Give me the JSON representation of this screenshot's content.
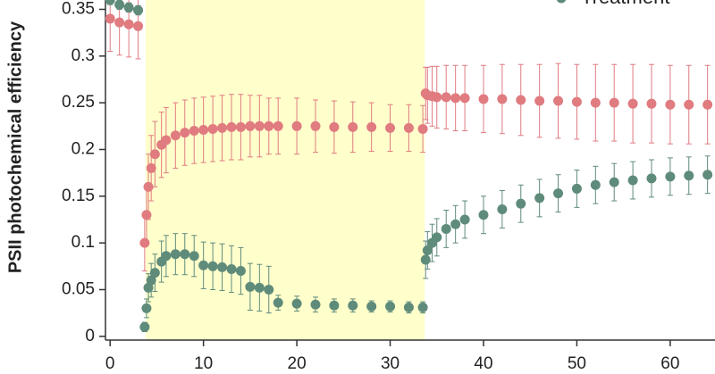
{
  "chart_data": {
    "type": "line",
    "y_label": "PSII photochemical efficiency",
    "x": [
      0,
      1,
      2,
      3,
      3.7,
      3.9,
      4.1,
      4.4,
      4.8,
      5.5,
      6,
      7,
      8,
      9,
      10,
      11,
      12,
      13,
      14,
      15,
      16,
      17,
      18,
      20,
      22,
      24,
      26,
      28,
      30,
      32,
      33.5,
      33.8,
      34,
      34.5,
      35,
      36,
      37,
      38,
      40,
      42,
      44,
      46,
      48,
      50,
      52,
      54,
      56,
      58,
      60,
      62,
      64
    ],
    "series": [
      {
        "color": "#e07b80",
        "values": [
          0.34,
          0.336,
          0.334,
          0.332,
          0.1,
          0.13,
          0.16,
          0.18,
          0.195,
          0.205,
          0.21,
          0.215,
          0.218,
          0.22,
          0.221,
          0.222,
          0.223,
          0.224,
          0.224,
          0.225,
          0.225,
          0.225,
          0.225,
          0.225,
          0.225,
          0.224,
          0.224,
          0.224,
          0.223,
          0.223,
          0.222,
          0.26,
          0.258,
          0.257,
          0.256,
          0.256,
          0.255,
          0.255,
          0.254,
          0.254,
          0.253,
          0.252,
          0.252,
          0.251,
          0.25,
          0.25,
          0.249,
          0.249,
          0.248,
          0.248,
          0.248
        ],
        "errors": [
          0.035,
          0.035,
          0.035,
          0.035,
          0.03,
          0.03,
          0.035,
          0.035,
          0.035,
          0.035,
          0.035,
          0.035,
          0.035,
          0.035,
          0.035,
          0.035,
          0.035,
          0.035,
          0.035,
          0.033,
          0.033,
          0.03,
          0.03,
          0.03,
          0.028,
          0.028,
          0.027,
          0.026,
          0.025,
          0.025,
          0.025,
          0.028,
          0.03,
          0.032,
          0.033,
          0.034,
          0.035,
          0.035,
          0.036,
          0.037,
          0.038,
          0.039,
          0.04,
          0.04,
          0.041,
          0.041,
          0.042,
          0.042,
          0.042,
          0.042,
          0.042
        ]
      },
      {
        "name": "Treatment",
        "color": "#5f8b7b",
        "values": [
          0.36,
          0.355,
          0.352,
          0.349,
          0.01,
          0.03,
          0.052,
          0.06,
          0.068,
          0.08,
          0.086,
          0.088,
          0.088,
          0.086,
          0.076,
          0.075,
          0.074,
          0.072,
          0.07,
          0.053,
          0.052,
          0.05,
          0.036,
          0.035,
          0.034,
          0.033,
          0.033,
          0.032,
          0.032,
          0.031,
          0.031,
          0.082,
          0.092,
          0.1,
          0.106,
          0.115,
          0.12,
          0.125,
          0.13,
          0.136,
          0.142,
          0.148,
          0.153,
          0.158,
          0.162,
          0.165,
          0.167,
          0.169,
          0.171,
          0.172,
          0.173
        ],
        "errors": [
          0.005,
          0.005,
          0.005,
          0.005,
          0.005,
          0.01,
          0.015,
          0.018,
          0.02,
          0.022,
          0.022,
          0.022,
          0.022,
          0.022,
          0.025,
          0.025,
          0.025,
          0.025,
          0.025,
          0.025,
          0.025,
          0.025,
          0.008,
          0.008,
          0.008,
          0.007,
          0.007,
          0.006,
          0.006,
          0.006,
          0.006,
          0.02,
          0.02,
          0.02,
          0.02,
          0.02,
          0.02,
          0.02,
          0.02,
          0.02,
          0.02,
          0.02,
          0.02,
          0.02,
          0.02,
          0.02,
          0.02,
          0.02,
          0.02,
          0.02,
          0.02
        ]
      }
    ],
    "shaded_region": {
      "x": [
        3.8,
        33.7
      ],
      "color": "#ffffcc"
    },
    "xlim": [
      -0.5,
      64.8
    ],
    "xticks": [
      0,
      10,
      20,
      30,
      40,
      50,
      60
    ],
    "ylim": [
      -0.004,
      0.36
    ],
    "yticks": [
      0,
      0.05,
      0.1,
      0.15,
      0.2,
      0.25,
      0.3,
      0.35
    ],
    "legend": "top-right"
  }
}
